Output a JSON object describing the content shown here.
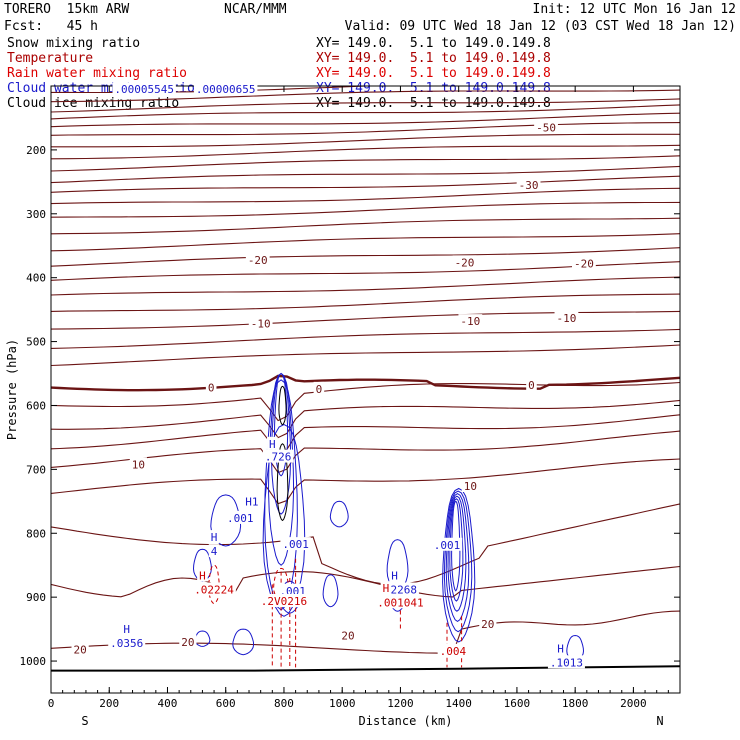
{
  "header": {
    "model": "TORERO  15km ARW",
    "center": "NCAR/MMM",
    "init": "Init: 12 UTC Mon 16 Jan 12",
    "fcst": "Fcst:   45 h",
    "valid": "Valid: 09 UTC Wed 18 Jan 12 (03 CST Wed 18 Jan 12)"
  },
  "colors": {
    "snow": "#000000",
    "temperature": "#6b1414",
    "rain": "#cc0000",
    "cloud_water": "#1a1acc",
    "cloud_ice": "#000000"
  },
  "chart_data": {
    "type": "contour-cross-section",
    "xlabel": "Distance (km)",
    "ylabel": "Pressure (hPa)",
    "xlim": [
      0,
      2160
    ],
    "ylim": [
      1050,
      100
    ],
    "x_ticks": [
      0,
      200,
      400,
      600,
      800,
      1000,
      1200,
      1400,
      1600,
      1800,
      2000
    ],
    "x_tick_labels": [
      "0",
      "200",
      "400",
      "600",
      "800",
      "1000",
      "1200",
      "1400",
      "1600",
      "1800",
      "2000"
    ],
    "y_ticks": [
      200,
      300,
      400,
      500,
      600,
      700,
      800,
      900,
      1000
    ],
    "y_tick_labels": [
      "200",
      "300",
      "400",
      "500",
      "600",
      "700",
      "800",
      "900",
      "1000"
    ],
    "left_end_label": "S",
    "right_end_label": "N",
    "series": [
      {
        "name": "Snow mixing ratio",
        "xy": "XY= 149.0.  5.1 to 149.0.149.8"
      },
      {
        "name": "Temperature",
        "xy": "XY= 149.0.  5.1 to 149.0.149.8"
      },
      {
        "name": "Rain water mixing ratio",
        "xy": "XY= 149.0.  5.1 to 149.0.149.8"
      },
      {
        "name": "Cloud water mixing ratio",
        "xy": "XY= 149.0.  5.1 to 149.0.149.8"
      },
      {
        "name": "Cloud ice mixing ratio",
        "xy": "XY= 149.0.  5.1 to 149.0.149.8"
      }
    ],
    "temperature_labels": [
      {
        "text": "-50",
        "x": 1700,
        "p": 165
      },
      {
        "text": "-30",
        "x": 1640,
        "p": 255
      },
      {
        "text": "-20",
        "x": 710,
        "p": 372
      },
      {
        "text": "-20",
        "x": 1420,
        "p": 376
      },
      {
        "text": "-20",
        "x": 1830,
        "p": 378
      },
      {
        "text": "-10",
        "x": 720,
        "p": 472
      },
      {
        "text": "-10",
        "x": 1440,
        "p": 468
      },
      {
        "text": "-10",
        "x": 1770,
        "p": 463
      },
      {
        "text": "0",
        "x": 550,
        "p": 572
      },
      {
        "text": "0",
        "x": 920,
        "p": 574
      },
      {
        "text": "0",
        "x": 1650,
        "p": 568
      },
      {
        "text": "10",
        "x": 300,
        "p": 692
      },
      {
        "text": "10",
        "x": 1440,
        "p": 726
      },
      {
        "text": "20",
        "x": 1500,
        "p": 942
      },
      {
        "text": "20",
        "x": 1020,
        "p": 960
      },
      {
        "text": "20",
        "x": 470,
        "p": 970
      },
      {
        "text": "20",
        "x": 100,
        "p": 982
      }
    ],
    "cloud_water_labels": [
      {
        "text": ".00005545",
        "x": 320,
        "p": 105
      },
      {
        "text": ".00000655",
        "x": 600,
        "p": 105
      },
      {
        "text": "H",
        "x": 260,
        "p": 950
      },
      {
        "text": ".0356",
        "x": 260,
        "p": 972
      },
      {
        "text": "H",
        "x": 560,
        "p": 806
      },
      {
        "text": "4",
        "x": 560,
        "p": 828
      },
      {
        "text": ".001",
        "x": 650,
        "p": 776
      },
      {
        "text": "H1",
        "x": 690,
        "p": 750
      },
      {
        "text": "H",
        "x": 760,
        "p": 660
      },
      {
        "text": ".726",
        "x": 780,
        "p": 680
      },
      {
        "text": ".001",
        "x": 840,
        "p": 817
      },
      {
        "text": ".001",
        "x": 830,
        "p": 890
      },
      {
        "text": "H",
        "x": 1180,
        "p": 866
      },
      {
        "text": ".2268",
        "x": 1200,
        "p": 888
      },
      {
        "text": ".001",
        "x": 1360,
        "p": 818
      },
      {
        "text": "H",
        "x": 1750,
        "p": 980
      },
      {
        "text": ".1013",
        "x": 1770,
        "p": 1002
      }
    ],
    "rain_labels": [
      {
        "text": "H",
        "x": 520,
        "p": 866
      },
      {
        "text": ".02224",
        "x": 560,
        "p": 888
      },
      {
        "text": ".2V0216",
        "x": 800,
        "p": 906
      },
      {
        "text": "H",
        "x": 1150,
        "p": 886
      },
      {
        "text": ".001041",
        "x": 1200,
        "p": 908
      },
      {
        "text": ".004",
        "x": 1380,
        "p": 984
      }
    ]
  }
}
